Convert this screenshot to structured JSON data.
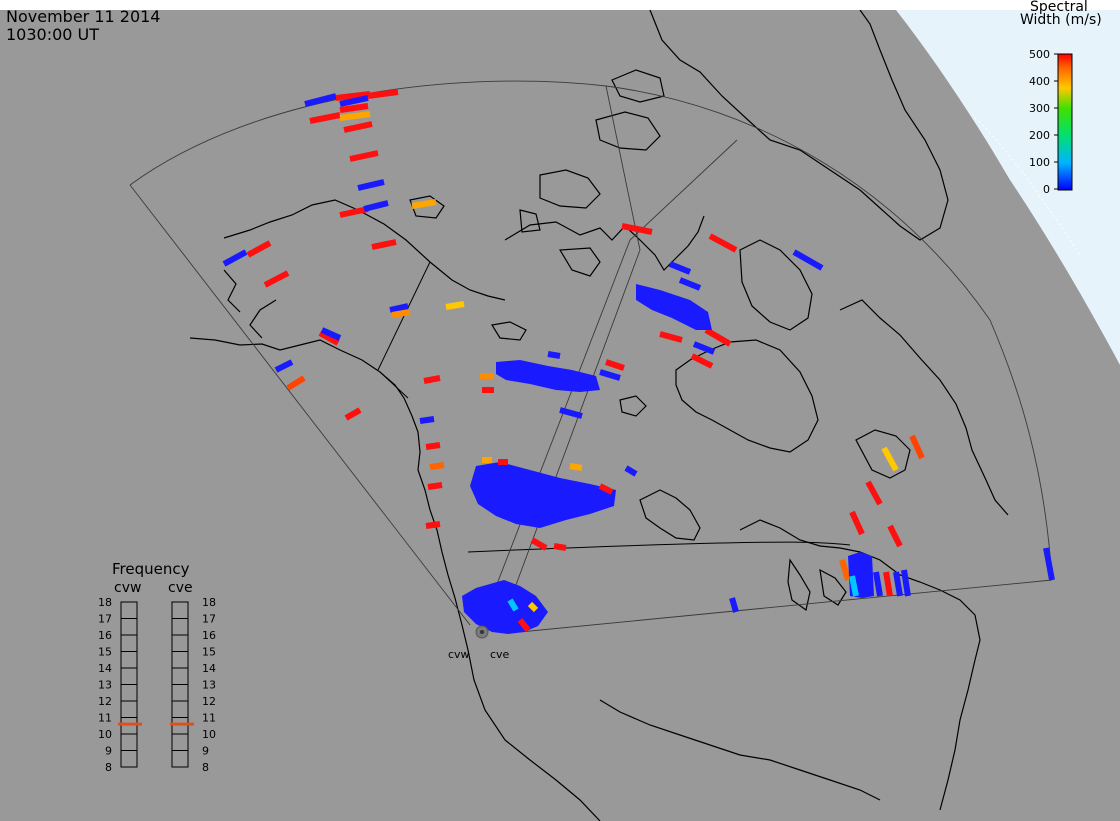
{
  "header": {
    "date": "November 11 2014",
    "time": "1030:00 UT"
  },
  "colorbar": {
    "title_line1": "Spectral",
    "title_line2": "Width (m/s)",
    "ticks": [
      "500",
      "400",
      "300",
      "200",
      "100",
      "0"
    ],
    "max": 500,
    "min": 0
  },
  "radars": [
    {
      "code": "cvw",
      "frequency": 10.6
    },
    {
      "code": "cve",
      "frequency": 10.6
    }
  ],
  "frequency_panel": {
    "title": "Frequency",
    "ticks": [
      "18",
      "17",
      "16",
      "15",
      "14",
      "13",
      "12",
      "11",
      "10",
      "9",
      "8"
    ],
    "min": 8,
    "max": 18
  },
  "colors": {
    "ocean": "#999999",
    "daylight": "#e6f3fb",
    "coast": "#000000",
    "indicator": "#e0501a"
  }
}
